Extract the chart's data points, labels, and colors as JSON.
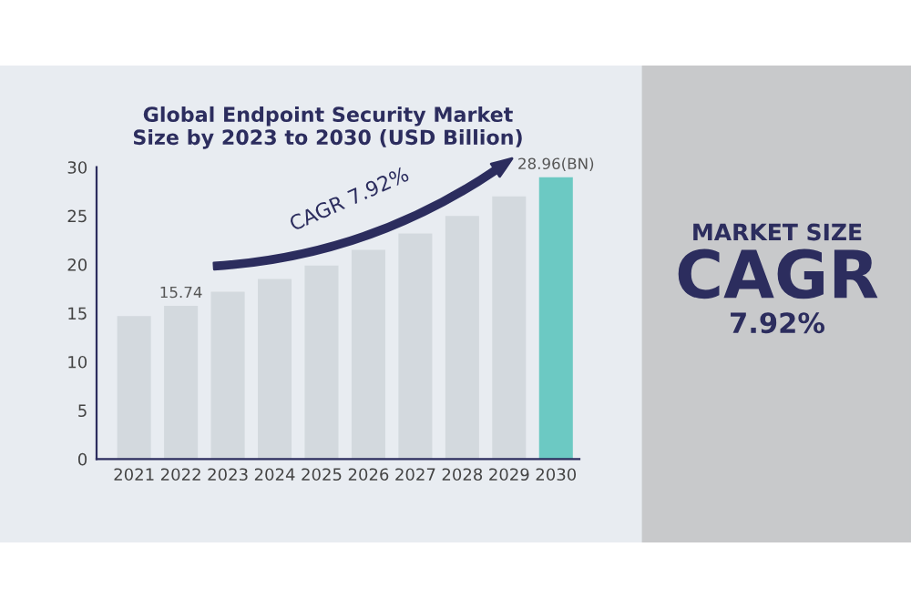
{
  "chart_data": {
    "type": "bar",
    "title": "Global Endpoint Security Market\nSize by 2023 to 2030 (USD Billion)",
    "categories": [
      "2021",
      "2022",
      "2023",
      "2024",
      "2025",
      "2026",
      "2027",
      "2028",
      "2029",
      "2030"
    ],
    "values": [
      14.7,
      15.74,
      17.2,
      18.5,
      19.9,
      21.5,
      23.2,
      25.0,
      27.0,
      28.96
    ],
    "value_labels": [
      null,
      "15.74",
      null,
      null,
      null,
      null,
      null,
      null,
      null,
      "28.96(BN)"
    ],
    "colors": [
      "#d3d9de",
      "#d3d9de",
      "#d3d9de",
      "#d3d9de",
      "#d3d9de",
      "#d3d9de",
      "#d3d9de",
      "#d3d9de",
      "#d3d9de",
      "#6cc9c3"
    ],
    "ylim": [
      0,
      30
    ],
    "yticks": [
      0,
      5,
      10,
      15,
      20,
      25,
      30
    ],
    "grid": false,
    "legend": false,
    "annotations": [
      "CAGR 7.92%",
      "MARKET SIZE",
      "CAGR",
      "7.92%"
    ]
  }
}
